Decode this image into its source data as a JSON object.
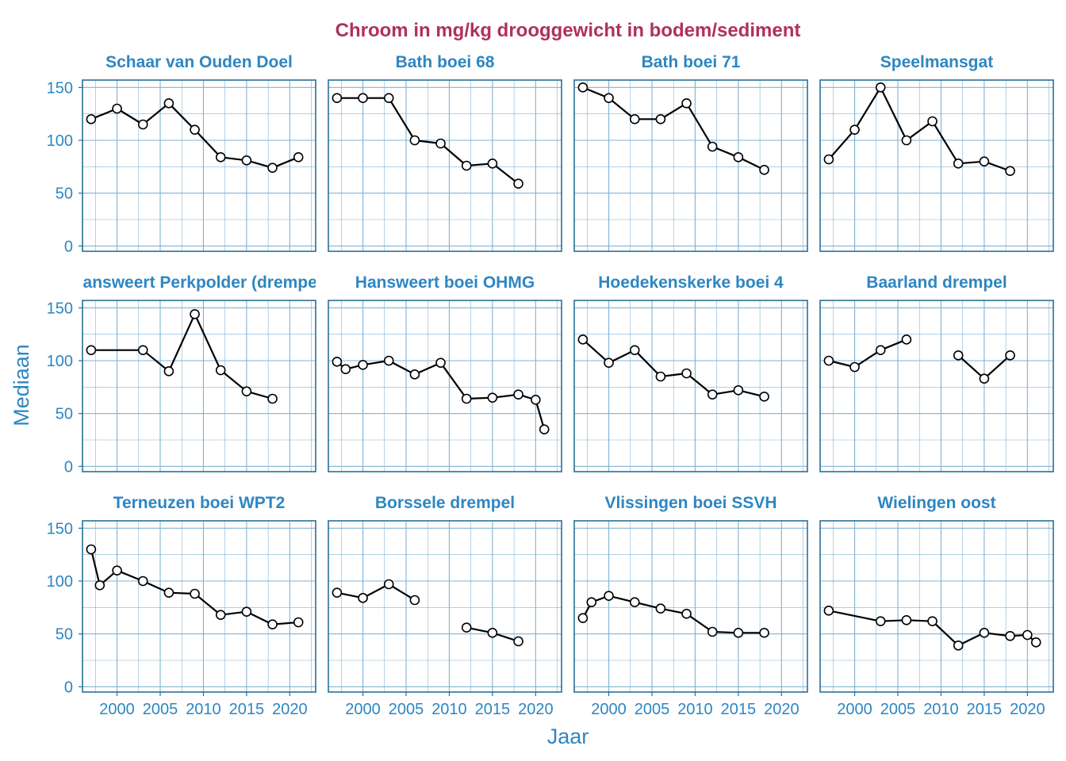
{
  "colors": {
    "title": "#b03060",
    "accent": "#2e86c1",
    "frame": "#2a6f97",
    "grid": "#7fb3d5",
    "line": "#000000",
    "point_fill": "#ffffff"
  },
  "chart_data": {
    "type": "line",
    "title": "Chroom in mg/kg drooggewicht in bodem/sediment",
    "xlabel": "Jaar",
    "ylabel": "Mediaan",
    "xlim": [
      1996,
      2023
    ],
    "ylim": [
      -5,
      157
    ],
    "x_ticks": [
      "2000",
      "2005",
      "2010",
      "2015",
      "2020"
    ],
    "y_ticks": [
      "0",
      "50",
      "100",
      "150"
    ],
    "grid": true,
    "facets": [
      {
        "name": "Schaar van Ouden Doel",
        "segments": [
          {
            "x": [
              1997,
              2000,
              2003,
              2006,
              2009,
              2012,
              2015,
              2018,
              2021
            ],
            "y": [
              120,
              130,
              115,
              135,
              110,
              84,
              81,
              74,
              84
            ]
          }
        ]
      },
      {
        "name": "Bath boei 68",
        "segments": [
          {
            "x": [
              1997,
              2000,
              2003,
              2006,
              2009,
              2012,
              2015,
              2018
            ],
            "y": [
              140,
              140,
              140,
              100,
              97,
              76,
              78,
              59
            ]
          }
        ]
      },
      {
        "name": "Bath boei 71",
        "segments": [
          {
            "x": [
              1997,
              2000,
              2003,
              2006,
              2009,
              2012,
              2015,
              2018
            ],
            "y": [
              150,
              140,
              120,
              120,
              135,
              94,
              84,
              72
            ]
          }
        ]
      },
      {
        "name": "Speelmansgat",
        "segments": [
          {
            "x": [
              1997,
              2000,
              2003,
              2006,
              2009,
              2012,
              2015,
              2018
            ],
            "y": [
              82,
              110,
              150,
              100,
              118,
              78,
              80,
              71
            ]
          }
        ]
      },
      {
        "name": "Hansweert Perkpolder (drempel)",
        "segments": [
          {
            "x": [
              1997,
              2003,
              2006,
              2009,
              2012,
              2015,
              2018
            ],
            "y": [
              110,
              110,
              90,
              144,
              91,
              71,
              64
            ]
          }
        ]
      },
      {
        "name": "Hansweert boei OHMG",
        "segments": [
          {
            "x": [
              1997,
              1998,
              2000,
              2003,
              2006,
              2009,
              2012,
              2015,
              2018,
              2020,
              2021
            ],
            "y": [
              99,
              92,
              96,
              100,
              87,
              98,
              64,
              65,
              68,
              63,
              35
            ]
          }
        ]
      },
      {
        "name": "Hoedekenskerke boei 4",
        "segments": [
          {
            "x": [
              1997,
              2000,
              2003,
              2006,
              2009,
              2012,
              2015,
              2018
            ],
            "y": [
              120,
              98,
              110,
              85,
              88,
              68,
              72,
              66
            ]
          }
        ]
      },
      {
        "name": "Baarland drempel",
        "segments": [
          {
            "x": [
              1997,
              2000,
              2003,
              2006
            ],
            "y": [
              100,
              94,
              110,
              120
            ]
          },
          {
            "x": [
              2012,
              2015,
              2018
            ],
            "y": [
              105,
              83,
              105
            ]
          }
        ]
      },
      {
        "name": "Terneuzen boei WPT2",
        "segments": [
          {
            "x": [
              1997,
              1998,
              2000,
              2003,
              2006,
              2009,
              2012,
              2015,
              2018,
              2021
            ],
            "y": [
              130,
              96,
              110,
              100,
              89,
              88,
              68,
              71,
              59,
              61
            ]
          }
        ]
      },
      {
        "name": "Borssele drempel",
        "segments": [
          {
            "x": [
              1997,
              2000,
              2003,
              2006
            ],
            "y": [
              89,
              84,
              97,
              82
            ]
          },
          {
            "x": [
              2012,
              2015,
              2018
            ],
            "y": [
              56,
              51,
              43
            ]
          }
        ]
      },
      {
        "name": "Vlissingen boei SSVH",
        "segments": [
          {
            "x": [
              1997,
              1998,
              2000,
              2003,
              2006,
              2009,
              2012,
              2015,
              2018
            ],
            "y": [
              65,
              80,
              86,
              80,
              74,
              69,
              52,
              51,
              51
            ]
          }
        ]
      },
      {
        "name": "Wielingen oost",
        "segments": [
          {
            "x": [
              1997,
              2003,
              2006,
              2009,
              2012,
              2015,
              2018,
              2020,
              2021
            ],
            "y": [
              72,
              62,
              63,
              62,
              39,
              51,
              48,
              49,
              42
            ]
          }
        ]
      }
    ]
  }
}
